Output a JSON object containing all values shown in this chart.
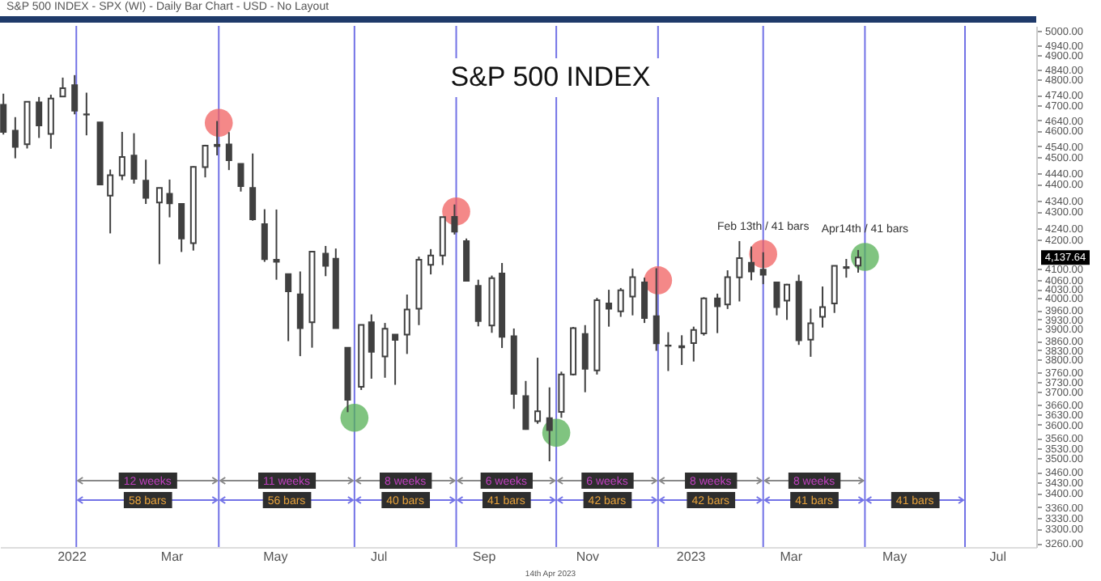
{
  "chart_data": {
    "type": "candlestick",
    "title": "S&P 500 INDEX",
    "subtitle": "S&P 500 INDEX - SPX (WI) - Daily Bar Chart - USD - No Layout",
    "color": "#404040",
    "log": true,
    "x": [
      "2021-11-22",
      "2021-11-29",
      "2021-12-06",
      "2021-12-13",
      "2021-12-20",
      "2021-12-27",
      "2022-01-03",
      "2022-01-10",
      "2022-01-18",
      "2022-01-24",
      "2022-01-31",
      "2022-02-07",
      "2022-02-14",
      "2022-02-22",
      "2022-02-28",
      "2022-03-07",
      "2022-03-14",
      "2022-03-21",
      "2022-03-28",
      "2022-04-04",
      "2022-04-11",
      "2022-04-18",
      "2022-04-25",
      "2022-05-02",
      "2022-05-09",
      "2022-05-16",
      "2022-05-23",
      "2022-05-31",
      "2022-06-06",
      "2022-06-13",
      "2022-06-21",
      "2022-06-27",
      "2022-07-05",
      "2022-07-11",
      "2022-07-18",
      "2022-07-25",
      "2022-08-01",
      "2022-08-08",
      "2022-08-15",
      "2022-08-22",
      "2022-08-29",
      "2022-09-06",
      "2022-09-12",
      "2022-09-19",
      "2022-09-26",
      "2022-10-03",
      "2022-10-10",
      "2022-10-17",
      "2022-10-24",
      "2022-10-31",
      "2022-11-07",
      "2022-11-14",
      "2022-11-21",
      "2022-11-28",
      "2022-12-05",
      "2022-12-12",
      "2022-12-19",
      "2022-12-27",
      "2023-01-03",
      "2023-01-09",
      "2023-01-17",
      "2023-01-23",
      "2023-01-30",
      "2023-02-06",
      "2023-02-13",
      "2023-02-21",
      "2023-02-27",
      "2023-03-06",
      "2023-03-13",
      "2023-03-20",
      "2023-03-27",
      "2023-04-03",
      "2023-04-10"
    ],
    "ohlc": [
      [
        4700,
        4744,
        4585,
        4595
      ],
      [
        4600,
        4652,
        4495,
        4538
      ],
      [
        4548,
        4713,
        4532,
        4712
      ],
      [
        4710,
        4731,
        4572,
        4620
      ],
      [
        4587,
        4740,
        4531,
        4725
      ],
      [
        4733,
        4808,
        4733,
        4766
      ],
      [
        4778,
        4818,
        4663,
        4677
      ],
      [
        4662,
        4748,
        4582,
        4663
      ],
      [
        4632,
        4632,
        4395,
        4398
      ],
      [
        4357,
        4453,
        4222,
        4432
      ],
      [
        4431,
        4595,
        4414,
        4500
      ],
      [
        4505,
        4590,
        4401,
        4419
      ],
      [
        4412,
        4490,
        4327,
        4349
      ],
      [
        4332,
        4385,
        4115,
        4385
      ],
      [
        4364,
        4416,
        4279,
        4329
      ],
      [
        4327,
        4330,
        4157,
        4204
      ],
      [
        4188,
        4465,
        4162,
        4463
      ],
      [
        4462,
        4546,
        4424,
        4543
      ],
      [
        4541,
        4637,
        4506,
        4546
      ],
      [
        4547,
        4594,
        4451,
        4488
      ],
      [
        4474,
        4474,
        4372,
        4392
      ],
      [
        4385,
        4513,
        4267,
        4272
      ],
      [
        4255,
        4308,
        4123,
        4132
      ],
      [
        4130,
        4307,
        4062,
        4123
      ],
      [
        4081,
        4081,
        3859,
        4023
      ],
      [
        4013,
        4090,
        3811,
        3901
      ],
      [
        3920,
        4158,
        3838,
        4158
      ],
      [
        4151,
        4178,
        4074,
        4109
      ],
      [
        4134,
        4169,
        3900,
        3901
      ],
      [
        3838,
        3838,
        3637,
        3675
      ],
      [
        3715,
        3913,
        3705,
        3912
      ],
      [
        3920,
        3946,
        3740,
        3825
      ],
      [
        3810,
        3918,
        3743,
        3899
      ],
      [
        3880,
        3880,
        3721,
        3863
      ],
      [
        3880,
        4012,
        3818,
        3962
      ],
      [
        3965,
        4141,
        3911,
        4130
      ],
      [
        4113,
        4167,
        4080,
        4145
      ],
      [
        4145,
        4280,
        4112,
        4280
      ],
      [
        4281,
        4325,
        4218,
        4228
      ],
      [
        4195,
        4204,
        4057,
        4058
      ],
      [
        4041,
        4062,
        3907,
        3924
      ],
      [
        3910,
        4076,
        3886,
        4067
      ],
      [
        4083,
        4119,
        3837,
        3873
      ],
      [
        3875,
        3900,
        3647,
        3693
      ],
      [
        3686,
        3733,
        3584,
        3586
      ],
      [
        3610,
        3806,
        3602,
        3640
      ],
      [
        3619,
        3713,
        3491,
        3583
      ],
      [
        3638,
        3762,
        3620,
        3753
      ],
      [
        3753,
        3905,
        3750,
        3901
      ],
      [
        3882,
        3911,
        3698,
        3771
      ],
      [
        3766,
        4001,
        3753,
        3993
      ],
      [
        3982,
        4028,
        3906,
        3965
      ],
      [
        3956,
        4034,
        3938,
        4026
      ],
      [
        4005,
        4100,
        3943,
        4071
      ],
      [
        4053,
        4069,
        3918,
        3934
      ],
      [
        3940,
        4101,
        3828,
        3852
      ],
      [
        3844,
        3888,
        3764,
        3845
      ],
      [
        3843,
        3878,
        3783,
        3839
      ],
      [
        3853,
        3906,
        3794,
        3895
      ],
      [
        3884,
        4003,
        3877,
        3999
      ],
      [
        3999,
        4015,
        3885,
        3973
      ],
      [
        3979,
        4094,
        3964,
        4071
      ],
      [
        4070,
        4195,
        3989,
        4136
      ],
      [
        4120,
        4176,
        4060,
        4090
      ],
      [
        4096,
        4156,
        4047,
        4079
      ],
      [
        4053,
        4054,
        3943,
        3970
      ],
      [
        3992,
        4048,
        3928,
        4045
      ],
      [
        4055,
        4079,
        3847,
        3862
      ],
      [
        3864,
        3965,
        3809,
        3917
      ],
      [
        3938,
        4039,
        3903,
        3970
      ],
      [
        3982,
        4110,
        3951,
        4109
      ],
      [
        4102,
        4133,
        4069,
        4105
      ],
      [
        4110,
        4164,
        4086,
        4138
      ]
    ],
    "series": [
      {
        "type": "scatter",
        "marker": "circle",
        "x": [
          "2022-03-29",
          "2022-06-17",
          "2022-08-16",
          "2022-10-14",
          "2022-12-13",
          "2023-02-13",
          "2023-04-14"
        ],
        "values": [
          4630,
          3620,
          4300,
          3575,
          4060,
          4150,
          4140
        ],
        "colors": [
          "#f06060",
          "#55b055",
          "#f06060",
          "#55b055",
          "#f06060",
          "#f06060",
          "#55b055"
        ],
        "value_labels": [
          null,
          null,
          null,
          null,
          null,
          "Feb 13th / 41 bars",
          "Apr14th / 41 bars"
        ]
      }
    ],
    "xlim": [
      "2021-11-20",
      "2023-07-24"
    ],
    "xticks": [
      {
        "value": "2022-01-01",
        "label": "2022"
      },
      {
        "value": "2022-03-01",
        "label": "Mar"
      },
      {
        "value": "2022-05-01",
        "label": "May"
      },
      {
        "value": "2022-07-01",
        "label": "Jul"
      },
      {
        "value": "2022-09-01",
        "label": "Sep"
      },
      {
        "value": "2022-11-01",
        "label": "Nov"
      },
      {
        "value": "2023-01-01",
        "label": "2023"
      },
      {
        "value": "2023-03-01",
        "label": "Mar"
      },
      {
        "value": "2023-05-01",
        "label": "May"
      },
      {
        "value": "2023-07-01",
        "label": "Jul"
      }
    ],
    "ylim": [
      3250,
      5020
    ],
    "yticks": [
      {
        "value": 5000,
        "label": "5000.00"
      },
      {
        "value": 4940,
        "label": "4940.00"
      },
      {
        "value": 4900,
        "label": "4900.00"
      },
      {
        "value": 4840,
        "label": "4840.00"
      },
      {
        "value": 4800,
        "label": "4800.00"
      },
      {
        "value": 4740,
        "label": "4740.00"
      },
      {
        "value": 4700,
        "label": "4700.00"
      },
      {
        "value": 4640,
        "label": "4640.00"
      },
      {
        "value": 4600,
        "label": "4600.00"
      },
      {
        "value": 4540,
        "label": "4540.00"
      },
      {
        "value": 4500,
        "label": "4500.00"
      },
      {
        "value": 4440,
        "label": "4440.00"
      },
      {
        "value": 4400,
        "label": "4400.00"
      },
      {
        "value": 4340,
        "label": "4340.00"
      },
      {
        "value": 4300,
        "label": "4300.00"
      },
      {
        "value": 4240,
        "label": "4240.00"
      },
      {
        "value": 4200,
        "label": "4200.00"
      },
      {
        "value": 4100,
        "label": "4100.00"
      },
      {
        "value": 4060,
        "label": "4060.00"
      },
      {
        "value": 4030,
        "label": "4030.00"
      },
      {
        "value": 4000,
        "label": "4000.00"
      },
      {
        "value": 3960,
        "label": "3960.00"
      },
      {
        "value": 3930,
        "label": "3930.00"
      },
      {
        "value": 3900,
        "label": "3900.00"
      },
      {
        "value": 3860,
        "label": "3860.00"
      },
      {
        "value": 3830,
        "label": "3830.00"
      },
      {
        "value": 3800,
        "label": "3800.00"
      },
      {
        "value": 3760,
        "label": "3760.00"
      },
      {
        "value": 3730,
        "label": "3730.00"
      },
      {
        "value": 3700,
        "label": "3700.00"
      },
      {
        "value": 3660,
        "label": "3660.00"
      },
      {
        "value": 3630,
        "label": "3630.00"
      },
      {
        "value": 3600,
        "label": "3600.00"
      },
      {
        "value": 3560,
        "label": "3560.00"
      },
      {
        "value": 3530,
        "label": "3530.00"
      },
      {
        "value": 3500,
        "label": "3500.00"
      },
      {
        "value": 3460,
        "label": "3460.00"
      },
      {
        "value": 3430,
        "label": "3430.00"
      },
      {
        "value": 3400,
        "label": "3400.00"
      },
      {
        "value": 3360,
        "label": "3360.00"
      },
      {
        "value": 3330,
        "label": "3330.00"
      },
      {
        "value": 3300,
        "label": "3300.00"
      },
      {
        "value": 3260,
        "label": "3260.00"
      }
    ],
    "ref_lines": [
      {
        "axis": "x",
        "value": "2022-01-04",
        "color": "#7272e6"
      },
      {
        "axis": "x",
        "value": "2022-03-29",
        "color": "#7272e6"
      },
      {
        "axis": "x",
        "value": "2022-06-17",
        "color": "#7272e6"
      },
      {
        "axis": "x",
        "value": "2022-08-16",
        "color": "#7272e6"
      },
      {
        "axis": "x",
        "value": "2022-10-14",
        "color": "#7272e6"
      },
      {
        "axis": "x",
        "value": "2022-12-13",
        "color": "#7272e6"
      },
      {
        "axis": "x",
        "value": "2023-02-13",
        "color": "#7272e6"
      },
      {
        "axis": "x",
        "value": "2023-04-14",
        "color": "#7272e6"
      },
      {
        "axis": "x",
        "value": "2023-06-12",
        "color": "#7272e6"
      }
    ],
    "annotations": [
      "12 weeks",
      "11 weeks",
      "8 weeks",
      "6 weeks",
      "6 weeks",
      "8 weeks",
      "8 weeks",
      "58 bars",
      "56 bars",
      "40 bars",
      "41 bars",
      "42 bars",
      "42 bars",
      "41 bars",
      "41 bars",
      {
        "text": "4,137.64",
        "y": 4137.64
      },
      "14th Apr 2023"
    ]
  }
}
